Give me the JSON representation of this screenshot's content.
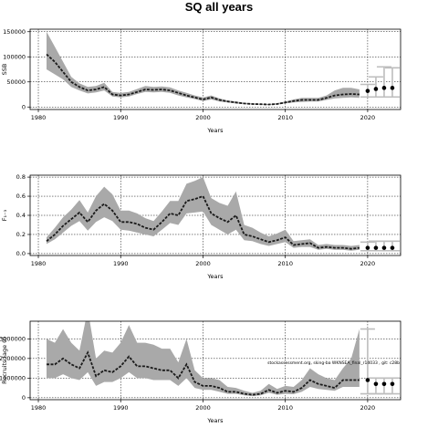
{
  "figure": {
    "title": "SQ all years"
  },
  "chart_data": [
    {
      "type": "line",
      "title": "",
      "xlabel": "Years",
      "ylabel": "SSB",
      "xlim": [
        1979,
        2024
      ],
      "ylim": [
        -5000,
        155000
      ],
      "xticks": [
        1980,
        1990,
        2000,
        2010,
        2020
      ],
      "yticks": [
        0,
        50000,
        100000,
        150000
      ],
      "ytick_labels": [
        "0",
        "50000",
        "100000",
        "150000"
      ],
      "grid": true,
      "series": [
        {
          "x": [
            1981,
            1982,
            1983,
            1984,
            1985,
            1986,
            1987,
            1988,
            1989,
            1990,
            1991,
            1992,
            1993,
            1994,
            1995,
            1996,
            1997,
            1998,
            1999,
            2000,
            2001,
            2002,
            2003,
            2004,
            2005,
            2006,
            2007,
            2008,
            2009,
            2010,
            2011,
            2012,
            2013,
            2014,
            2015,
            2016,
            2017,
            2018,
            2019
          ],
          "median": [
            105000,
            90000,
            70000,
            50000,
            40000,
            33000,
            35000,
            40000,
            25000,
            23000,
            25000,
            30000,
            35000,
            34000,
            35000,
            33000,
            28000,
            23000,
            19000,
            15000,
            19000,
            14000,
            11000,
            9000,
            7000,
            6000,
            5500,
            5000,
            6000,
            9000,
            12000,
            14000,
            14000,
            14000,
            18000,
            23000,
            25000,
            26000,
            25000
          ],
          "lower": [
            75000,
            65000,
            55000,
            40000,
            33000,
            27000,
            29000,
            33000,
            21000,
            19000,
            21000,
            26000,
            30000,
            29000,
            30000,
            28000,
            23000,
            19000,
            16000,
            12000,
            15000,
            11000,
            9000,
            7000,
            5500,
            5000,
            4500,
            4000,
            5000,
            7000,
            9000,
            10000,
            11000,
            11000,
            14000,
            17000,
            18000,
            19000,
            18000
          ],
          "upper": [
            150000,
            120000,
            90000,
            60000,
            47000,
            40000,
            42000,
            48000,
            30000,
            28000,
            30000,
            36000,
            42000,
            40000,
            41000,
            39000,
            33000,
            28000,
            23000,
            19000,
            23000,
            17000,
            13000,
            11000,
            8500,
            7000,
            6500,
            6000,
            7500,
            11000,
            15000,
            18000,
            18000,
            18000,
            23000,
            33000,
            38000,
            38000,
            35000
          ]
        }
      ],
      "projection": {
        "x": [
          2020,
          2021,
          2022,
          2023
        ],
        "median": [
          32000,
          36000,
          38000,
          38000
        ],
        "lower": [
          20000,
          20000,
          20000,
          20000
        ],
        "upper": [
          45000,
          60000,
          80000,
          78000
        ]
      }
    },
    {
      "type": "line",
      "title": "",
      "xlabel": "Years",
      "ylabel": "F₁₋₃",
      "xlim": [
        1979,
        2024
      ],
      "ylim": [
        -0.02,
        0.82
      ],
      "xticks": [
        1980,
        1990,
        2000,
        2010,
        2020
      ],
      "yticks": [
        0,
        0.2,
        0.4,
        0.6,
        0.8
      ],
      "ytick_labels": [
        "0.0",
        "0.2",
        "0.4",
        "0.6",
        "0.8"
      ],
      "grid": true,
      "series": [
        {
          "x": [
            1981,
            1982,
            1983,
            1984,
            1985,
            1986,
            1987,
            1988,
            1989,
            1990,
            1991,
            1992,
            1993,
            1994,
            1995,
            1996,
            1997,
            1998,
            1999,
            2000,
            2001,
            2002,
            2003,
            2004,
            2005,
            2006,
            2007,
            2008,
            2009,
            2010,
            2011,
            2012,
            2013,
            2014,
            2015,
            2016,
            2017,
            2018,
            2019
          ],
          "median": [
            0.13,
            0.2,
            0.29,
            0.36,
            0.43,
            0.33,
            0.45,
            0.52,
            0.45,
            0.33,
            0.33,
            0.31,
            0.27,
            0.25,
            0.33,
            0.42,
            0.4,
            0.55,
            0.57,
            0.6,
            0.42,
            0.37,
            0.33,
            0.4,
            0.2,
            0.18,
            0.15,
            0.12,
            0.14,
            0.17,
            0.09,
            0.1,
            0.11,
            0.06,
            0.07,
            0.06,
            0.06,
            0.05,
            0.06
          ],
          "lower": [
            0.1,
            0.15,
            0.22,
            0.29,
            0.34,
            0.24,
            0.33,
            0.38,
            0.34,
            0.25,
            0.24,
            0.22,
            0.2,
            0.18,
            0.25,
            0.32,
            0.3,
            0.42,
            0.43,
            0.44,
            0.3,
            0.25,
            0.2,
            0.25,
            0.14,
            0.13,
            0.1,
            0.08,
            0.1,
            0.12,
            0.06,
            0.07,
            0.07,
            0.04,
            0.05,
            0.04,
            0.04,
            0.03,
            0.04
          ],
          "upper": [
            0.17,
            0.27,
            0.38,
            0.46,
            0.56,
            0.43,
            0.6,
            0.7,
            0.62,
            0.45,
            0.45,
            0.42,
            0.37,
            0.34,
            0.44,
            0.55,
            0.55,
            0.73,
            0.76,
            0.8,
            0.58,
            0.53,
            0.5,
            0.65,
            0.3,
            0.27,
            0.22,
            0.18,
            0.21,
            0.25,
            0.13,
            0.14,
            0.15,
            0.09,
            0.1,
            0.09,
            0.09,
            0.08,
            0.09
          ]
        }
      ],
      "projection": {
        "x": [
          2020,
          2021,
          2022,
          2023
        ],
        "median": [
          0.06,
          0.06,
          0.06,
          0.06
        ],
        "lower": [
          0.03,
          0.03,
          0.03,
          0.03
        ],
        "upper": [
          0.12,
          0.13,
          0.13,
          0.13
        ]
      }
    },
    {
      "type": "line",
      "title": "",
      "xlabel": "Years",
      "ylabel": "Recruits (age 0)",
      "xlim": [
        1979,
        2024
      ],
      "ylim": [
        -100000,
        3900000
      ],
      "xticks": [
        1980,
        1990,
        2000,
        2010,
        2020
      ],
      "yticks": [
        0,
        1000000,
        2000000,
        3000000
      ],
      "ytick_labels": [
        "0",
        "1000000",
        "2000000",
        "3000000"
      ],
      "grid": true,
      "annotation": "stockassessment.org, sking-ba WKNSEA_final_r14033 , git: c28b",
      "series": [
        {
          "x": [
            1981,
            1982,
            1983,
            1984,
            1985,
            1986,
            1987,
            1988,
            1989,
            1990,
            1991,
            1992,
            1993,
            1994,
            1995,
            1996,
            1997,
            1998,
            1999,
            2000,
            2001,
            2002,
            2003,
            2004,
            2005,
            2006,
            2007,
            2008,
            2009,
            2010,
            2011,
            2012,
            2013,
            2014,
            2015,
            2016,
            2017,
            2018,
            2019
          ],
          "median": [
            1700000,
            1700000,
            2000000,
            1700000,
            1500000,
            2300000,
            1100000,
            1400000,
            1300000,
            1600000,
            2100000,
            1600000,
            1600000,
            1500000,
            1400000,
            1400000,
            1000000,
            1700000,
            800000,
            600000,
            600000,
            500000,
            300000,
            300000,
            200000,
            150000,
            200000,
            400000,
            250000,
            350000,
            300000,
            500000,
            900000,
            700000,
            600000,
            500000,
            900000,
            900000,
            900000
          ],
          "lower": [
            1000000,
            1000000,
            1200000,
            1000000,
            900000,
            1300000,
            600000,
            800000,
            800000,
            1000000,
            1300000,
            1000000,
            1000000,
            900000,
            900000,
            900000,
            600000,
            1000000,
            500000,
            400000,
            400000,
            300000,
            200000,
            200000,
            120000,
            80000,
            120000,
            250000,
            150000,
            200000,
            180000,
            300000,
            550000,
            450000,
            400000,
            350000,
            550000,
            550000,
            550000
          ],
          "upper": [
            3000000,
            2800000,
            3500000,
            2800000,
            2400000,
            4500000,
            2000000,
            2400000,
            2300000,
            2800000,
            3700000,
            2800000,
            2800000,
            2700000,
            2500000,
            2500000,
            1800000,
            3000000,
            1400000,
            1000000,
            1000000,
            900000,
            550000,
            500000,
            350000,
            250000,
            350000,
            700000,
            450000,
            600000,
            550000,
            900000,
            1500000,
            1200000,
            1000000,
            900000,
            1500000,
            2000000,
            3500000
          ]
        }
      ],
      "projection": {
        "x": [
          2020,
          2021,
          2022,
          2023
        ],
        "median": [
          900000,
          700000,
          700000,
          700000
        ],
        "lower": [
          200000,
          200000,
          200000,
          200000
        ],
        "upper": [
          3500000,
          1000000,
          1000000,
          1000000
        ]
      }
    }
  ]
}
